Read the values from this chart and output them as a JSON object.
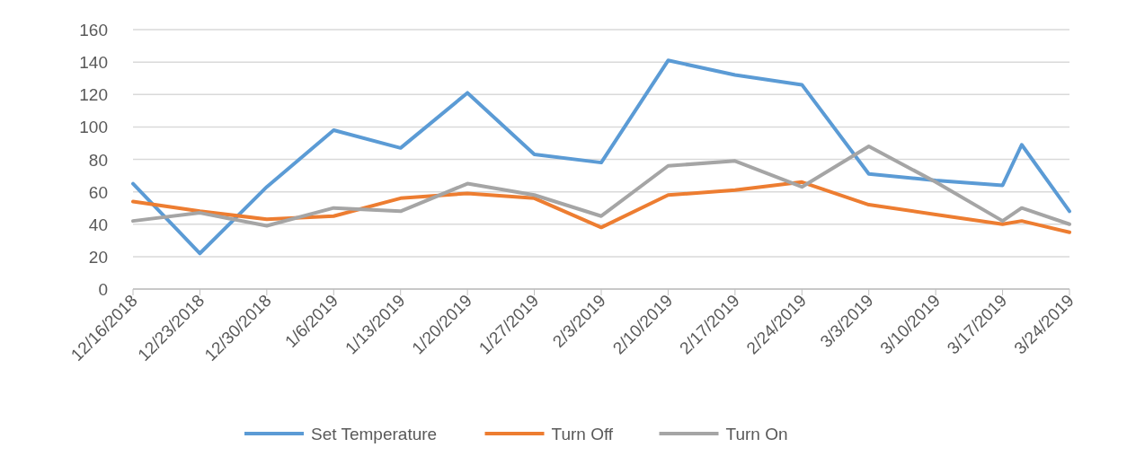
{
  "chart_data": {
    "type": "line",
    "x": [
      "2018-12-16",
      "2018-12-23",
      "2018-12-30",
      "2019-01-06",
      "2019-01-13",
      "2019-01-20",
      "2019-01-27",
      "2019-02-03",
      "2019-02-10",
      "2019-02-17",
      "2019-02-24",
      "2019-03-03",
      "2019-03-10",
      "2019-03-17",
      "2019-03-19",
      "2019-03-24"
    ],
    "series": [
      {
        "name": "Set Temperature",
        "color": "#5b9bd5",
        "values": [
          65,
          22,
          63,
          98,
          87,
          121,
          83,
          78,
          141,
          132,
          126,
          71,
          67,
          64,
          89,
          48
        ]
      },
      {
        "name": "Turn Off",
        "color": "#ed7d31",
        "values": [
          54,
          48,
          43,
          45,
          56,
          59,
          56,
          38,
          58,
          61,
          66,
          52,
          46,
          40,
          42,
          35
        ]
      },
      {
        "name": "Turn On",
        "color": "#a5a5a5",
        "values": [
          42,
          47,
          39,
          50,
          48,
          65,
          58,
          45,
          76,
          79,
          63,
          88,
          66,
          42,
          50,
          40
        ]
      }
    ],
    "xlim": [
      "2018-12-16",
      "2019-03-24"
    ],
    "xticks": [
      {
        "value": "2018-12-16",
        "label": "12/16/2018"
      },
      {
        "value": "2018-12-23",
        "label": "12/23/2018"
      },
      {
        "value": "2018-12-30",
        "label": "12/30/2018"
      },
      {
        "value": "2019-01-06",
        "label": "1/6/2019"
      },
      {
        "value": "2019-01-13",
        "label": "1/13/2019"
      },
      {
        "value": "2019-01-20",
        "label": "1/20/2019"
      },
      {
        "value": "2019-01-27",
        "label": "1/27/2019"
      },
      {
        "value": "2019-02-03",
        "label": "2/3/2019"
      },
      {
        "value": "2019-02-10",
        "label": "2/10/2019"
      },
      {
        "value": "2019-02-17",
        "label": "2/17/2019"
      },
      {
        "value": "2019-02-24",
        "label": "2/24/2019"
      },
      {
        "value": "2019-03-03",
        "label": "3/3/2019"
      },
      {
        "value": "2019-03-10",
        "label": "3/10/2019"
      },
      {
        "value": "2019-03-17",
        "label": "3/17/2019"
      },
      {
        "value": "2019-03-24",
        "label": "3/24/2019"
      }
    ],
    "ylim": [
      0,
      160
    ],
    "yticks": [
      0,
      20,
      40,
      60,
      80,
      100,
      120,
      140,
      160
    ],
    "grid": "y",
    "legend": "bottom",
    "marker": "none",
    "line_style": "solid"
  }
}
